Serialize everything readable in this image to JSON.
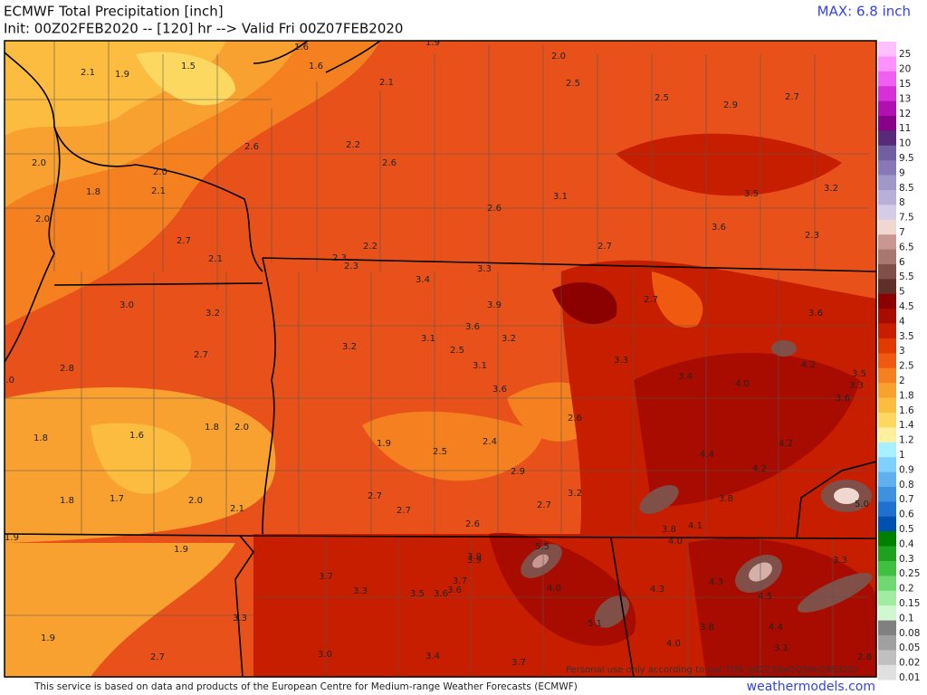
{
  "header": {
    "title": "ECMWF Total Precipitation [inch]",
    "subtitle": "Init: 00Z02FEB2020 -- [120] hr --> Valid Fri 00Z07FEB2020",
    "max": "MAX: 6.8 inch"
  },
  "colorbar": [
    {
      "label": "25",
      "color": "#ffc0ff"
    },
    {
      "label": "20",
      "color": "#ff90ff"
    },
    {
      "label": "15",
      "color": "#f060f0"
    },
    {
      "label": "13",
      "color": "#d830d8"
    },
    {
      "label": "12",
      "color": "#b010b0"
    },
    {
      "label": "11",
      "color": "#880088"
    },
    {
      "label": "10",
      "color": "#5a2a7a"
    },
    {
      "label": "9.5",
      "color": "#7060a0"
    },
    {
      "label": "9",
      "color": "#8878b8"
    },
    {
      "label": "8.5",
      "color": "#a098c8"
    },
    {
      "label": "8",
      "color": "#b8b0d8"
    },
    {
      "label": "7.5",
      "color": "#d4cce8"
    },
    {
      "label": "7",
      "color": "#f0d8d0"
    },
    {
      "label": "6.5",
      "color": "#c89890"
    },
    {
      "label": "6",
      "color": "#a87870"
    },
    {
      "label": "5.5",
      "color": "#805048"
    },
    {
      "label": "5",
      "color": "#603028"
    },
    {
      "label": "4.5",
      "color": "#8b0000"
    },
    {
      "label": "4",
      "color": "#a80c00"
    },
    {
      "label": "3.5",
      "color": "#c81e00"
    },
    {
      "label": "3",
      "color": "#e03a00"
    },
    {
      "label": "2.5",
      "color": "#f05a10"
    },
    {
      "label": "2",
      "color": "#f58020"
    },
    {
      "label": "1.8",
      "color": "#f8a030"
    },
    {
      "label": "1.6",
      "color": "#fbbc40"
    },
    {
      "label": "1.4",
      "color": "#fdd860"
    },
    {
      "label": "1.2",
      "color": "#fff0a0"
    },
    {
      "label": "1",
      "color": "#a8f0ff"
    },
    {
      "label": "0.9",
      "color": "#80d0ff"
    },
    {
      "label": "0.8",
      "color": "#60b0f0"
    },
    {
      "label": "0.7",
      "color": "#4090e0"
    },
    {
      "label": "0.6",
      "color": "#2070d0"
    },
    {
      "label": "0.5",
      "color": "#0050b0"
    },
    {
      "label": "0.4",
      "color": "#008000"
    },
    {
      "label": "0.3",
      "color": "#20a020"
    },
    {
      "label": "0.25",
      "color": "#40c040"
    },
    {
      "label": "0.2",
      "color": "#70d870"
    },
    {
      "label": "0.15",
      "color": "#a0eca0"
    },
    {
      "label": "0.1",
      "color": "#d0f8d0"
    },
    {
      "label": "0.08",
      "color": "#808080"
    },
    {
      "label": "0.05",
      "color": "#a0a0a0"
    },
    {
      "label": "0.02",
      "color": "#c0c0c0"
    },
    {
      "label": "0.01",
      "color": "#e0e0e0"
    }
  ],
  "map_labels": [
    "2.1",
    "1.9",
    "1.5",
    "1.6",
    "1.6",
    "1.9",
    "2.0",
    "2.5",
    "2.5",
    "2.7",
    "2.9",
    "2.1",
    "2.6",
    "2.2",
    "2.6",
    "2.0",
    "2.0",
    "2.1",
    "1.8",
    "2.0",
    "3.1",
    "3.5",
    "3.2",
    "2.6",
    "3.6",
    "2.3",
    "2.7",
    "2.7",
    "2.1",
    "2.3",
    "2.3",
    "2.2",
    "3.3",
    "3.4",
    "2.7",
    "3.0",
    "3.2",
    "3.9",
    "3.6",
    "3.6",
    "3.1",
    "2.5",
    "3.2",
    "3.2",
    "2.7",
    "2.8",
    "3.3",
    "4.2",
    "3.5",
    "3.1",
    "3.4",
    "4.0",
    "3.3",
    "3.0",
    "3.6",
    "3.6",
    "1.8",
    "2.0",
    "2.6",
    "1.8",
    "1.6",
    "1.9",
    "2.5",
    "2.4",
    "4.2",
    "4.4",
    "4.2",
    "2.9",
    "3.2",
    "3.8",
    "2.7",
    "1.8",
    "1.7",
    "2.0",
    "2.1",
    "2.7",
    "2.7",
    "2.6",
    "3.8",
    "4.1",
    "5.0",
    "4.0",
    "1.9",
    "1.9",
    "5.5",
    "3.9",
    "3.9",
    "3.3",
    "3.7",
    "3.7",
    "3.6",
    "4.3",
    "4.3",
    "4.0",
    "3.3",
    "3.5",
    "3.6",
    "4.5",
    "3.3",
    "5.1",
    "4.4",
    "3.8",
    "1.9",
    "4.0",
    "3.1",
    "2.7",
    "3.0",
    "3.4",
    "3.7",
    "2.8"
  ],
  "footer": {
    "notice": "This service is based on data and products of the European Centre for Medium-range Weather Forecasts (ECMWF)",
    "site": "weathermodels.com",
    "tos": "Personal use only according to our TOS (pf2230w2Q59n29S320)"
  }
}
